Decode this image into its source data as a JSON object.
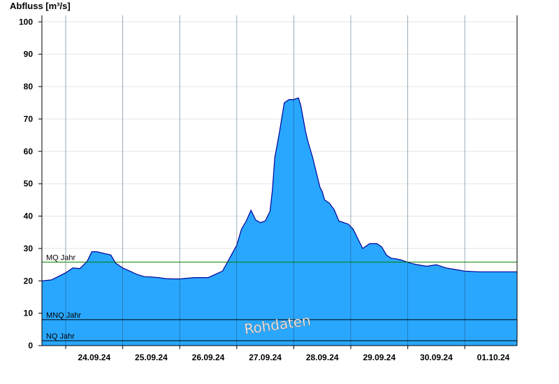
{
  "chart_data": {
    "type": "area",
    "title": "",
    "ylabel": "Abfluss [m³/s]",
    "xlabel": "",
    "ylim": [
      0,
      102
    ],
    "yticks": [
      0,
      10,
      20,
      30,
      40,
      50,
      60,
      70,
      80,
      90,
      100
    ],
    "x_start": "23.09.24 14:00",
    "x_end": "01.10.24 22:00",
    "xticks": [
      "24.09.24",
      "25.09.24",
      "26.09.24",
      "27.09.24",
      "28.09.24",
      "29.09.24",
      "30.09.24",
      "01.10.24"
    ],
    "grid": true,
    "area_color": "#29A7FF",
    "line_color": "#000099",
    "x": [
      "23.09.24 14:00",
      "23.09.24 18:00",
      "23.09.24 20:00",
      "24.09.24 00:00",
      "24.09.24 03:00",
      "24.09.24 06:00",
      "24.09.24 09:00",
      "24.09.24 11:00",
      "24.09.24 13:00",
      "24.09.24 16:00",
      "24.09.24 19:00",
      "24.09.24 21:00",
      "25.09.24 00:00",
      "25.09.24 03:00",
      "25.09.24 06:00",
      "25.09.24 09:00",
      "25.09.24 12:00",
      "25.09.24 15:00",
      "25.09.24 18:00",
      "25.09.24 21:00",
      "26.09.24 00:00",
      "26.09.24 06:00",
      "26.09.24 12:00",
      "26.09.24 18:00",
      "26.09.24 21:00",
      "27.09.24 00:00",
      "27.09.24 02:00",
      "27.09.24 04:00",
      "27.09.24 06:00",
      "27.09.24 08:00",
      "27.09.24 10:00",
      "27.09.24 12:00",
      "27.09.24 14:00",
      "27.09.24 15:00",
      "27.09.24 16:00",
      "27.09.24 18:00",
      "27.09.24 20:00",
      "27.09.24 22:00",
      "28.09.24 00:00",
      "28.09.24 01:00",
      "28.09.24 02:00",
      "28.09.24 03:00",
      "28.09.24 04:00",
      "28.09.24 05:00",
      "28.09.24 06:00",
      "28.09.24 08:00",
      "28.09.24 09:00",
      "28.09.24 10:00",
      "28.09.24 11:00",
      "28.09.24 12:00",
      "28.09.24 13:00",
      "28.09.24 15:00",
      "28.09.24 17:00",
      "28.09.24 19:00",
      "28.09.24 21:00",
      "28.09.24 23:00",
      "29.09.24 01:00",
      "29.09.24 03:00",
      "29.09.24 05:00",
      "29.09.24 08:00",
      "29.09.24 11:00",
      "29.09.24 13:00",
      "29.09.24 15:00",
      "29.09.24 17:00",
      "29.09.24 19:00",
      "29.09.24 21:00",
      "29.09.24 23:00",
      "30.09.24 01:00",
      "30.09.24 04:00",
      "30.09.24 08:00",
      "30.09.24 12:00",
      "30.09.24 16:00",
      "30.09.24 20:00",
      "01.10.24 00:00",
      "01.10.24 06:00",
      "01.10.24 12:00",
      "01.10.24 18:00",
      "01.10.24 22:00"
    ],
    "y": [
      20.0,
      20.3,
      21.0,
      22.5,
      24.0,
      23.8,
      26.0,
      29.0,
      29.0,
      28.5,
      28.0,
      25.5,
      24.0,
      23.0,
      22.0,
      21.3,
      21.2,
      21.0,
      20.7,
      20.6,
      20.6,
      21.0,
      21.0,
      23.0,
      27.0,
      31.0,
      36.0,
      38.5,
      41.8,
      38.8,
      38.0,
      38.5,
      41.5,
      48.0,
      58.0,
      66.0,
      75.0,
      76.0,
      76.0,
      76.3,
      76.5,
      74.0,
      70.0,
      66.0,
      63.0,
      58.0,
      55.0,
      52.0,
      49.0,
      47.5,
      45.0,
      44.0,
      42.0,
      38.5,
      38.0,
      37.5,
      36.0,
      33.0,
      30.0,
      31.5,
      31.5,
      30.5,
      28.0,
      27.0,
      26.8,
      26.5,
      26.0,
      25.5,
      25.0,
      24.5,
      25.0,
      24.0,
      23.5,
      23.0,
      22.8,
      22.8,
      22.8,
      22.8
    ]
  },
  "reference_lines": [
    {
      "label": "MQ Jahr",
      "value": 25.8,
      "color": "#008000"
    },
    {
      "label": "MNQ Jahr",
      "value": 8.0,
      "color": "#000000"
    },
    {
      "label": "NQ Jahr",
      "value": 1.5,
      "color": "#000000"
    }
  ],
  "watermark": "Rohdaten"
}
